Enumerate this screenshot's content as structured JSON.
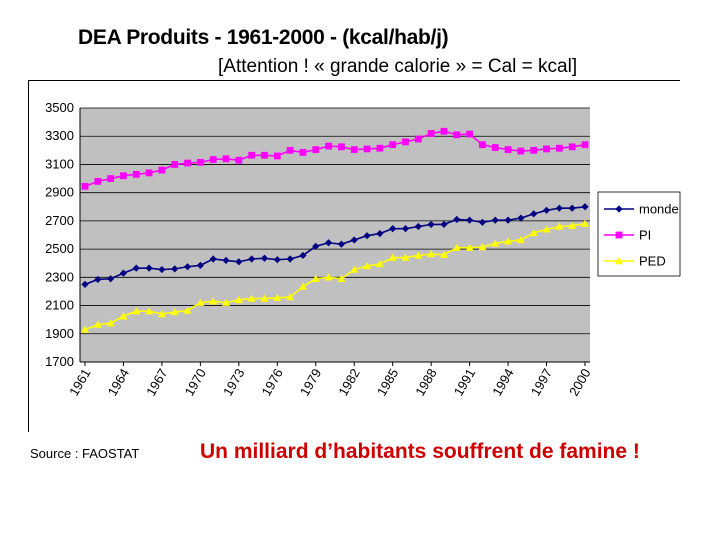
{
  "title": "DEA Produits - 1961-2000 - (kcal/hab/j)",
  "subtitle": "[Attention ! « grande calorie » = Cal = kcal]",
  "source": "Source : FAOSTAT",
  "headline": "Un milliard d’habitants souffrent de famine !",
  "colors": {
    "plot_background": "#c0c0c0",
    "monde": "#000080",
    "PI": "#ff00ff",
    "PED": "#ffff00",
    "headline": "#cc0000"
  },
  "chart_data": {
    "type": "line",
    "title": "DEA Produits - 1961-2000 - (kcal/hab/j)",
    "xlabel": "",
    "ylabel": "",
    "ylim": [
      1700,
      3500
    ],
    "yticks": [
      "3500",
      "3300",
      "3100",
      "2900",
      "2700",
      "2500",
      "2300",
      "2100",
      "1900",
      "1700"
    ],
    "xtick_labels": [
      "1961",
      "1964",
      "1967",
      "1970",
      "1973",
      "1976",
      "1979",
      "1982",
      "1985",
      "1988",
      "1991",
      "1994",
      "1997",
      "2000"
    ],
    "x": [
      1961,
      1962,
      1963,
      1964,
      1965,
      1966,
      1967,
      1968,
      1969,
      1970,
      1971,
      1972,
      1973,
      1974,
      1975,
      1976,
      1977,
      1978,
      1979,
      1980,
      1981,
      1982,
      1983,
      1984,
      1985,
      1986,
      1987,
      1988,
      1989,
      1990,
      1991,
      1992,
      1993,
      1994,
      1995,
      1996,
      1997,
      1998,
      1999,
      2000
    ],
    "grid": true,
    "legend_position": "right",
    "series": [
      {
        "name": "monde",
        "marker": "diamond",
        "values": [
          2250,
          2285,
          2290,
          2330,
          2365,
          2365,
          2355,
          2360,
          2375,
          2385,
          2430,
          2420,
          2410,
          2430,
          2435,
          2425,
          2430,
          2455,
          2520,
          2545,
          2535,
          2565,
          2595,
          2610,
          2645,
          2645,
          2660,
          2675,
          2675,
          2710,
          2705,
          2690,
          2705,
          2705,
          2720,
          2750,
          2775,
          2790,
          2790,
          2800
        ]
      },
      {
        "name": "PI",
        "marker": "square",
        "values": [
          2945,
          2980,
          3000,
          3020,
          3030,
          3040,
          3060,
          3100,
          3110,
          3115,
          3135,
          3140,
          3130,
          3165,
          3165,
          3160,
          3200,
          3185,
          3205,
          3230,
          3225,
          3205,
          3210,
          3215,
          3240,
          3260,
          3280,
          3320,
          3335,
          3310,
          3315,
          3240,
          3220,
          3205,
          3195,
          3200,
          3210,
          3215,
          3225,
          3240
        ]
      },
      {
        "name": "PED",
        "marker": "triangle",
        "values": [
          1930,
          1965,
          1975,
          2025,
          2060,
          2060,
          2040,
          2055,
          2065,
          2120,
          2130,
          2120,
          2140,
          2150,
          2150,
          2155,
          2160,
          2235,
          2290,
          2300,
          2290,
          2355,
          2380,
          2395,
          2440,
          2440,
          2455,
          2465,
          2460,
          2510,
          2510,
          2515,
          2540,
          2555,
          2565,
          2615,
          2640,
          2660,
          2665,
          2680
        ]
      }
    ]
  }
}
